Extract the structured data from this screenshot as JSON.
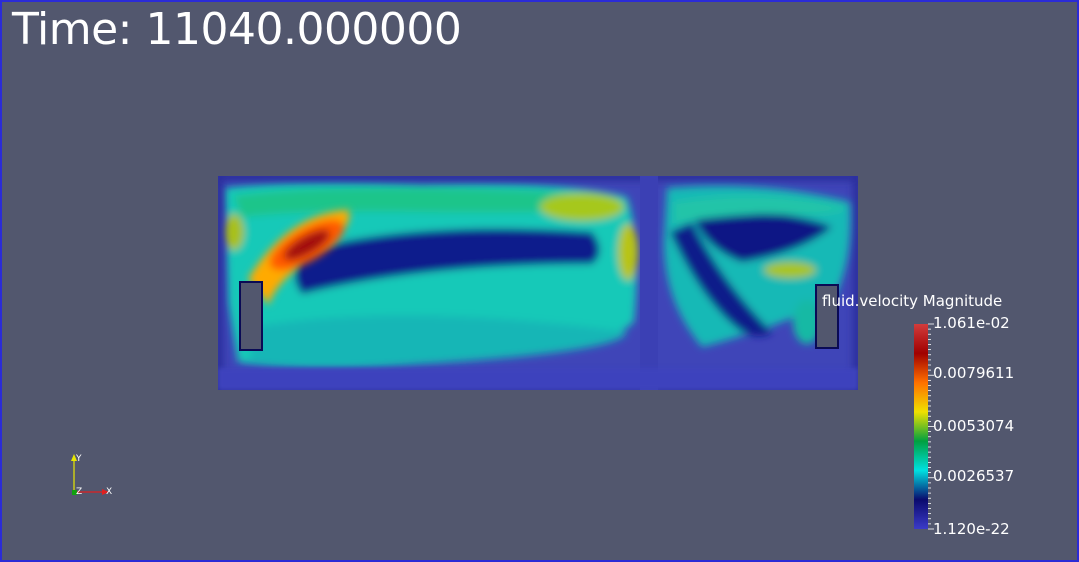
{
  "time_label": "Time: 11040.000000",
  "colorbar": {
    "title": "fluid.velocity Magnitude",
    "max_label": "1.061e-02",
    "tick3": "0.0079611",
    "tick2": "0.0053074",
    "tick1": "0.0026537",
    "min_label": "1.120e-22",
    "colors": [
      "#3b3bc8",
      "#0a0a6e",
      "#00e0e0",
      "#00a040",
      "#f0e000",
      "#ff7000",
      "#a00000",
      "#d23c3c"
    ]
  },
  "axes": {
    "x": "X",
    "y": "Y",
    "z": "Z"
  },
  "colors": {
    "background": "#52576e",
    "border": "#2b2bd6"
  }
}
